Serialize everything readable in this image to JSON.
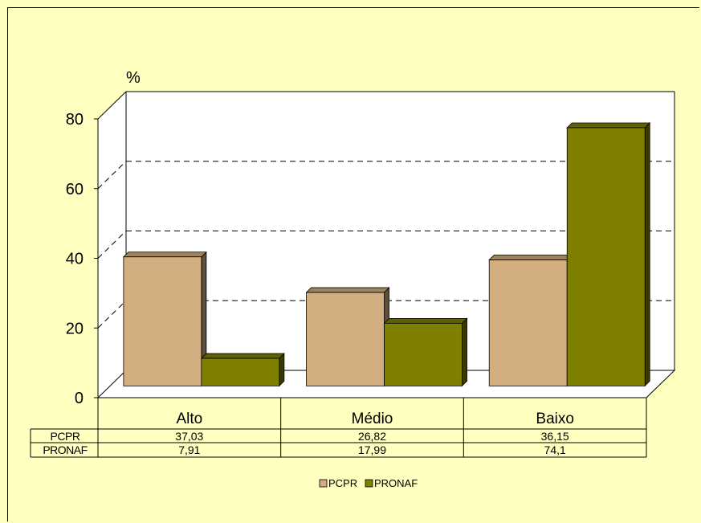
{
  "chart_data": {
    "type": "bar",
    "ylabel": "%",
    "ylim": [
      0,
      80
    ],
    "yticks": [
      "0",
      "20",
      "40",
      "60",
      "80"
    ],
    "categories": [
      "Alto",
      "Médio",
      "Baixo"
    ],
    "series": [
      {
        "name": "PCPR",
        "values": [
          37.03,
          26.82,
          36.15
        ],
        "labels": [
          "37,03",
          "26,82",
          "36,15"
        ],
        "color": "#d2ae80"
      },
      {
        "name": "PRONAF",
        "values": [
          7.91,
          17.99,
          74.1
        ],
        "labels": [
          "7,91",
          "17,99",
          "74,1"
        ],
        "color": "#808000"
      }
    ],
    "legend": "bottom",
    "grid": true,
    "style": "3d-bar-with-data-table"
  },
  "colors": {
    "background": "#ffffc0",
    "pcpr": "#d2ae80",
    "pronaf": "#808000"
  }
}
